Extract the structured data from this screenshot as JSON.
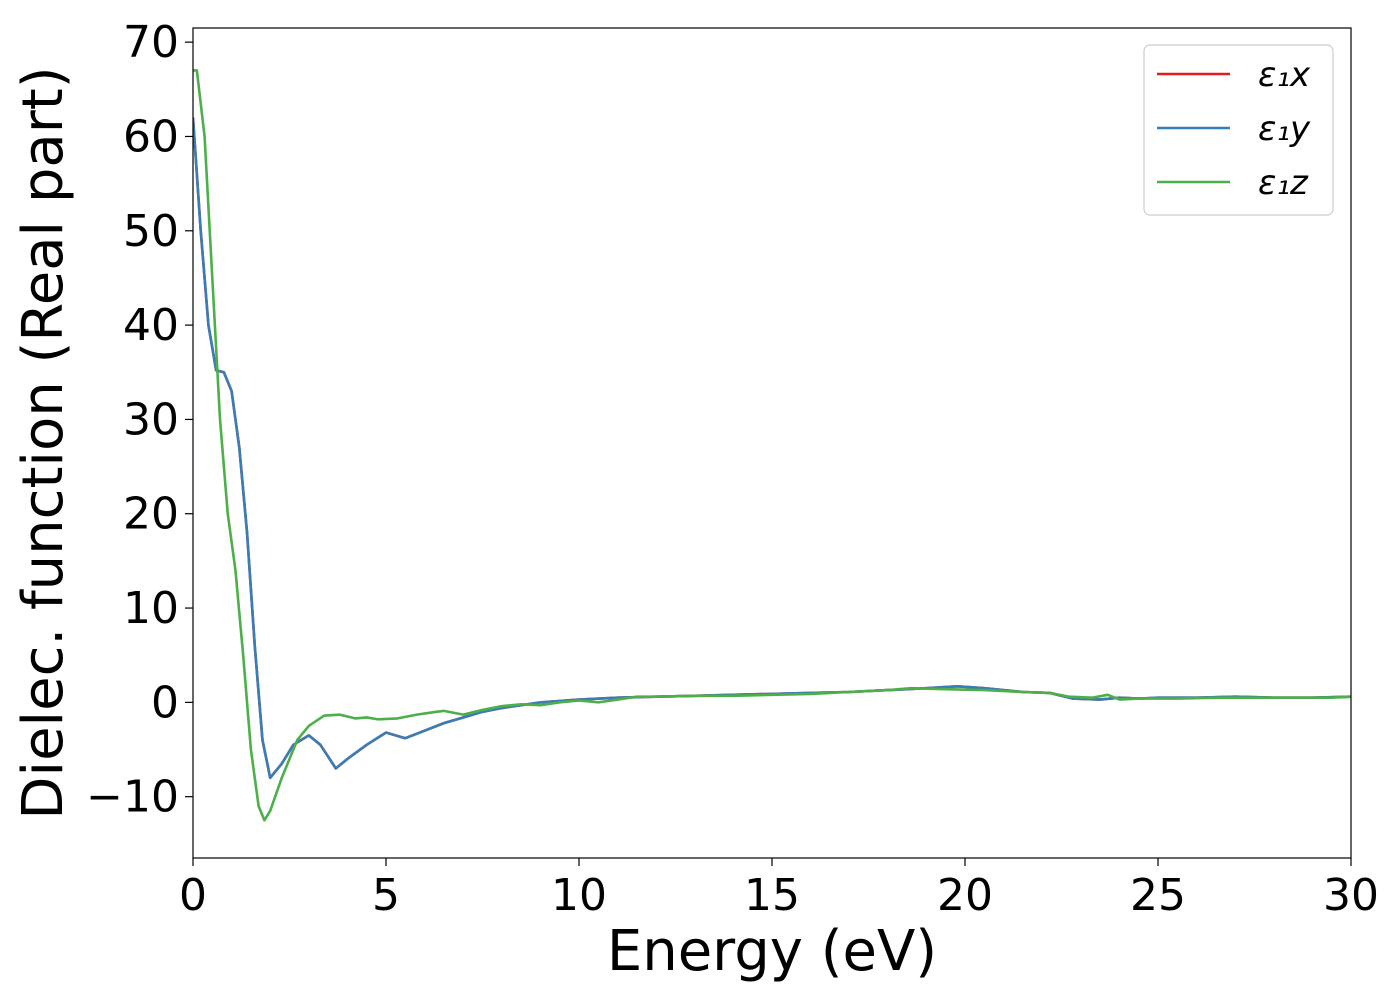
{
  "chart_data": {
    "type": "line",
    "xlabel": "Energy (eV)",
    "ylabel": "Dielec. function (Real part)",
    "xlim": [
      0,
      30
    ],
    "ylim": [
      -16.5,
      71.5
    ],
    "xticks": [
      0,
      5,
      10,
      15,
      20,
      25,
      30
    ],
    "yticks": [
      -10,
      0,
      10,
      20,
      30,
      40,
      50,
      60,
      70
    ],
    "xtick_labels": [
      "0",
      "5",
      "10",
      "15",
      "20",
      "25",
      "30"
    ],
    "ytick_labels": [
      "−10",
      "0",
      "10",
      "20",
      "30",
      "40",
      "50",
      "60",
      "70"
    ],
    "grid": false,
    "legend_position": "top-right",
    "series": [
      {
        "name": "ε₁x",
        "color": "#e41a1c",
        "points": [
          [
            0,
            62
          ],
          [
            0.2,
            50
          ],
          [
            0.4,
            40
          ],
          [
            0.6,
            35.2
          ],
          [
            0.8,
            35
          ],
          [
            1.0,
            33
          ],
          [
            1.2,
            27
          ],
          [
            1.4,
            18
          ],
          [
            1.6,
            6
          ],
          [
            1.8,
            -4
          ],
          [
            2.0,
            -8
          ],
          [
            2.3,
            -6.5
          ],
          [
            2.6,
            -4.5
          ],
          [
            3.0,
            -3.5
          ],
          [
            3.3,
            -4.5
          ],
          [
            3.7,
            -7
          ],
          [
            4.0,
            -6
          ],
          [
            4.5,
            -4.5
          ],
          [
            5.0,
            -3.2
          ],
          [
            5.5,
            -3.8
          ],
          [
            6.0,
            -3
          ],
          [
            6.5,
            -2.2
          ],
          [
            7.0,
            -1.6
          ],
          [
            7.5,
            -1
          ],
          [
            8.0,
            -0.6
          ],
          [
            8.5,
            -0.3
          ],
          [
            9.0,
            0
          ],
          [
            10.0,
            0.3
          ],
          [
            11.0,
            0.5
          ],
          [
            12.0,
            0.6
          ],
          [
            13.0,
            0.7
          ],
          [
            14.0,
            0.8
          ],
          [
            15.0,
            0.9
          ],
          [
            16.0,
            1.0
          ],
          [
            17.0,
            1.1
          ],
          [
            18.0,
            1.3
          ],
          [
            19.0,
            1.5
          ],
          [
            19.8,
            1.7
          ],
          [
            20.5,
            1.5
          ],
          [
            21.5,
            1.1
          ],
          [
            22.2,
            1.0
          ],
          [
            22.8,
            0.4
          ],
          [
            23.5,
            0.3
          ],
          [
            24.0,
            0.5
          ],
          [
            24.5,
            0.4
          ],
          [
            25.0,
            0.5
          ],
          [
            26.0,
            0.5
          ],
          [
            27.0,
            0.6
          ],
          [
            28.0,
            0.5
          ],
          [
            29.0,
            0.5
          ],
          [
            30.0,
            0.6
          ]
        ]
      },
      {
        "name": "ε₁y",
        "color": "#377eb8",
        "points": [
          [
            0,
            62
          ],
          [
            0.2,
            50
          ],
          [
            0.4,
            40
          ],
          [
            0.6,
            35.2
          ],
          [
            0.8,
            35
          ],
          [
            1.0,
            33
          ],
          [
            1.2,
            27
          ],
          [
            1.4,
            18
          ],
          [
            1.6,
            6
          ],
          [
            1.8,
            -4
          ],
          [
            2.0,
            -8
          ],
          [
            2.3,
            -6.5
          ],
          [
            2.6,
            -4.5
          ],
          [
            3.0,
            -3.5
          ],
          [
            3.3,
            -4.5
          ],
          [
            3.7,
            -7
          ],
          [
            4.0,
            -6
          ],
          [
            4.5,
            -4.5
          ],
          [
            5.0,
            -3.2
          ],
          [
            5.5,
            -3.8
          ],
          [
            6.0,
            -3
          ],
          [
            6.5,
            -2.2
          ],
          [
            7.0,
            -1.6
          ],
          [
            7.5,
            -1
          ],
          [
            8.0,
            -0.6
          ],
          [
            8.5,
            -0.3
          ],
          [
            9.0,
            0
          ],
          [
            10.0,
            0.3
          ],
          [
            11.0,
            0.5
          ],
          [
            12.0,
            0.6
          ],
          [
            13.0,
            0.7
          ],
          [
            14.0,
            0.8
          ],
          [
            15.0,
            0.9
          ],
          [
            16.0,
            1.0
          ],
          [
            17.0,
            1.1
          ],
          [
            18.0,
            1.3
          ],
          [
            19.0,
            1.5
          ],
          [
            19.8,
            1.7
          ],
          [
            20.5,
            1.5
          ],
          [
            21.5,
            1.1
          ],
          [
            22.2,
            1.0
          ],
          [
            22.8,
            0.4
          ],
          [
            23.5,
            0.3
          ],
          [
            24.0,
            0.5
          ],
          [
            24.5,
            0.4
          ],
          [
            25.0,
            0.5
          ],
          [
            26.0,
            0.5
          ],
          [
            27.0,
            0.6
          ],
          [
            28.0,
            0.5
          ],
          [
            29.0,
            0.5
          ],
          [
            30.0,
            0.6
          ]
        ]
      },
      {
        "name": "ε₁z",
        "color": "#4daf4a",
        "points": [
          [
            0,
            67
          ],
          [
            0.1,
            67
          ],
          [
            0.3,
            60
          ],
          [
            0.5,
            45
          ],
          [
            0.7,
            30
          ],
          [
            0.9,
            20
          ],
          [
            1.1,
            14
          ],
          [
            1.3,
            5
          ],
          [
            1.5,
            -5
          ],
          [
            1.7,
            -11
          ],
          [
            1.85,
            -12.5
          ],
          [
            2.0,
            -11.5
          ],
          [
            2.3,
            -8
          ],
          [
            2.7,
            -4
          ],
          [
            3.0,
            -2.5
          ],
          [
            3.4,
            -1.4
          ],
          [
            3.8,
            -1.3
          ],
          [
            4.2,
            -1.7
          ],
          [
            4.5,
            -1.6
          ],
          [
            4.8,
            -1.8
          ],
          [
            5.3,
            -1.7
          ],
          [
            5.8,
            -1.3
          ],
          [
            6.3,
            -1
          ],
          [
            6.5,
            -0.9
          ],
          [
            7.0,
            -1.3
          ],
          [
            7.5,
            -0.8
          ],
          [
            8.0,
            -0.4
          ],
          [
            8.5,
            -0.2
          ],
          [
            9.0,
            -0.3
          ],
          [
            9.5,
            0.0
          ],
          [
            10.0,
            0.2
          ],
          [
            10.5,
            0.0
          ],
          [
            11.0,
            0.3
          ],
          [
            11.5,
            0.6
          ],
          [
            12.0,
            0.6
          ],
          [
            13.0,
            0.7
          ],
          [
            14.0,
            0.7
          ],
          [
            15.0,
            0.8
          ],
          [
            16.0,
            0.9
          ],
          [
            17.0,
            1.1
          ],
          [
            18.0,
            1.3
          ],
          [
            18.6,
            1.5
          ],
          [
            19.5,
            1.4
          ],
          [
            20.5,
            1.3
          ],
          [
            21.5,
            1.1
          ],
          [
            22.2,
            1.0
          ],
          [
            22.7,
            0.6
          ],
          [
            23.3,
            0.5
          ],
          [
            23.7,
            0.8
          ],
          [
            24.0,
            0.3
          ],
          [
            24.5,
            0.4
          ],
          [
            25.5,
            0.4
          ],
          [
            26.5,
            0.5
          ],
          [
            27.5,
            0.5
          ],
          [
            28.5,
            0.5
          ],
          [
            29.5,
            0.5
          ],
          [
            30.0,
            0.6
          ]
        ]
      }
    ]
  }
}
